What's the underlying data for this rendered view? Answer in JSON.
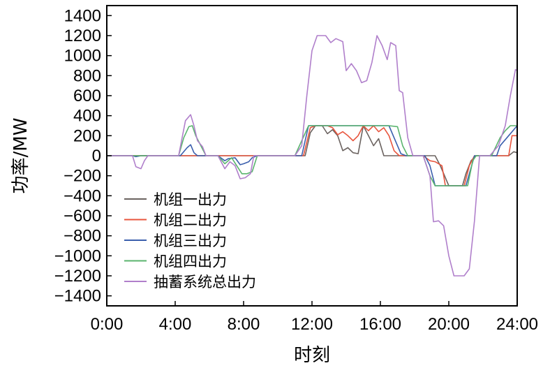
{
  "chart_data": {
    "type": "line",
    "title": "",
    "xlabel": "时刻",
    "ylabel": "功率/MW",
    "xlim": [
      0,
      24
    ],
    "ylim": [
      -1500,
      1500
    ],
    "x_ticks": [
      "0:00",
      "4:00",
      "8:00",
      "12:00",
      "16:00",
      "20:00",
      "24:00"
    ],
    "x_tick_values": [
      0,
      4,
      8,
      12,
      16,
      20,
      24
    ],
    "y_ticks": [
      1400,
      1200,
      1000,
      800,
      600,
      400,
      200,
      0,
      -200,
      -400,
      -600,
      -800,
      -1000,
      -1200,
      -1400
    ],
    "grid": false,
    "legend_position": "bottom-left",
    "series": [
      {
        "name": "机组一出力",
        "color": "#6b6360",
        "points": [
          [
            0,
            0
          ],
          [
            11,
            0
          ],
          [
            11.6,
            0
          ],
          [
            11.9,
            230
          ],
          [
            12.2,
            300
          ],
          [
            12.6,
            300
          ],
          [
            12.9,
            220
          ],
          [
            13.2,
            260
          ],
          [
            13.5,
            200
          ],
          [
            13.8,
            50
          ],
          [
            14.1,
            80
          ],
          [
            14.4,
            30
          ],
          [
            14.7,
            20
          ],
          [
            15,
            300
          ],
          [
            15.3,
            200
          ],
          [
            15.6,
            100
          ],
          [
            15.9,
            170
          ],
          [
            16.2,
            0
          ],
          [
            16.5,
            0
          ],
          [
            17,
            0
          ],
          [
            17.5,
            0
          ],
          [
            18,
            0
          ],
          [
            18.5,
            0
          ],
          [
            19.2,
            0
          ],
          [
            19.5,
            -100
          ],
          [
            20,
            -300
          ],
          [
            20.3,
            -300
          ],
          [
            20.8,
            -300
          ],
          [
            21,
            -180
          ],
          [
            21.3,
            -50
          ],
          [
            21.6,
            0
          ],
          [
            22,
            0
          ],
          [
            23.5,
            0
          ],
          [
            23.8,
            40
          ],
          [
            24,
            30
          ]
        ]
      },
      {
        "name": "机组二出力",
        "color": "#e8553e",
        "points": [
          [
            0,
            0
          ],
          [
            11,
            0
          ],
          [
            11.5,
            0
          ],
          [
            11.9,
            280
          ],
          [
            12.2,
            300
          ],
          [
            12.6,
            300
          ],
          [
            12.9,
            300
          ],
          [
            13.2,
            280
          ],
          [
            13.5,
            210
          ],
          [
            13.8,
            240
          ],
          [
            14.1,
            200
          ],
          [
            14.4,
            150
          ],
          [
            14.7,
            200
          ],
          [
            15,
            300
          ],
          [
            15.3,
            250
          ],
          [
            15.6,
            300
          ],
          [
            15.9,
            240
          ],
          [
            16.2,
            280
          ],
          [
            16.5,
            200
          ],
          [
            16.8,
            50
          ],
          [
            17.1,
            0
          ],
          [
            18,
            0
          ],
          [
            18.5,
            0
          ],
          [
            18.9,
            -50
          ],
          [
            19.2,
            -60
          ],
          [
            19.6,
            -100
          ],
          [
            19.8,
            -300
          ],
          [
            20,
            -300
          ],
          [
            20.4,
            -300
          ],
          [
            20.9,
            -300
          ],
          [
            21.2,
            -100
          ],
          [
            21.5,
            0
          ],
          [
            22,
            0
          ],
          [
            23,
            0
          ],
          [
            23.5,
            0
          ],
          [
            23.7,
            200
          ],
          [
            24,
            200
          ]
        ]
      },
      {
        "name": "机组三出力",
        "color": "#3b5fad",
        "points": [
          [
            0,
            0
          ],
          [
            1.5,
            0
          ],
          [
            1.7,
            -10
          ],
          [
            2,
            0
          ],
          [
            4.3,
            0
          ],
          [
            4.7,
            80
          ],
          [
            4.9,
            110
          ],
          [
            5.1,
            30
          ],
          [
            5.3,
            0
          ],
          [
            6,
            0
          ],
          [
            6.5,
            0
          ],
          [
            6.9,
            -50
          ],
          [
            7.1,
            -30
          ],
          [
            7.5,
            -20
          ],
          [
            7.8,
            -90
          ],
          [
            8,
            -80
          ],
          [
            8.3,
            -60
          ],
          [
            8.5,
            -20
          ],
          [
            8.8,
            0
          ],
          [
            11,
            0
          ],
          [
            11.4,
            0
          ],
          [
            11.8,
            300
          ],
          [
            12.2,
            300
          ],
          [
            13,
            300
          ],
          [
            14,
            300
          ],
          [
            15,
            300
          ],
          [
            16,
            300
          ],
          [
            16.5,
            300
          ],
          [
            16.8,
            180
          ],
          [
            17.2,
            20
          ],
          [
            17.5,
            0
          ],
          [
            18,
            0
          ],
          [
            18.6,
            0
          ],
          [
            18.9,
            -100
          ],
          [
            19.2,
            -300
          ],
          [
            19.6,
            -300
          ],
          [
            20,
            -300
          ],
          [
            20.5,
            -300
          ],
          [
            21,
            -300
          ],
          [
            21.3,
            -120
          ],
          [
            21.5,
            0
          ],
          [
            22,
            0
          ],
          [
            22.8,
            0
          ],
          [
            23,
            100
          ],
          [
            23.5,
            200
          ],
          [
            24,
            300
          ]
        ]
      },
      {
        "name": "机组四出力",
        "color": "#5ab46e",
        "points": [
          [
            0,
            0
          ],
          [
            1.5,
            0
          ],
          [
            2,
            0
          ],
          [
            4.2,
            0
          ],
          [
            4.5,
            180
          ],
          [
            4.8,
            290
          ],
          [
            5,
            300
          ],
          [
            5.2,
            200
          ],
          [
            5.5,
            100
          ],
          [
            5.8,
            0
          ],
          [
            6,
            0
          ],
          [
            6.5,
            0
          ],
          [
            6.9,
            -80
          ],
          [
            7.3,
            -20
          ],
          [
            7.6,
            -100
          ],
          [
            7.9,
            -180
          ],
          [
            8.2,
            -180
          ],
          [
            8.5,
            -160
          ],
          [
            8.8,
            0
          ],
          [
            11,
            0
          ],
          [
            11.4,
            150
          ],
          [
            11.8,
            300
          ],
          [
            12.5,
            300
          ],
          [
            13,
            300
          ],
          [
            14,
            300
          ],
          [
            15,
            300
          ],
          [
            16,
            300
          ],
          [
            16.5,
            300
          ],
          [
            17,
            290
          ],
          [
            17.3,
            100
          ],
          [
            17.6,
            0
          ],
          [
            18.5,
            0
          ],
          [
            18.9,
            -200
          ],
          [
            19.2,
            -300
          ],
          [
            19.6,
            -300
          ],
          [
            20,
            -300
          ],
          [
            20.5,
            -300
          ],
          [
            21.1,
            -300
          ],
          [
            21.4,
            -50
          ],
          [
            21.6,
            0
          ],
          [
            22.5,
            0
          ],
          [
            23,
            180
          ],
          [
            23.3,
            250
          ],
          [
            23.6,
            300
          ],
          [
            24,
            300
          ]
        ]
      },
      {
        "name": "抽蓄系统总出力",
        "color": "#b07fcb",
        "points": [
          [
            0,
            0
          ],
          [
            1.5,
            0
          ],
          [
            1.7,
            -110
          ],
          [
            2,
            -130
          ],
          [
            2.2,
            -50
          ],
          [
            2.4,
            0
          ],
          [
            4.2,
            0
          ],
          [
            4.6,
            350
          ],
          [
            4.9,
            410
          ],
          [
            5.1,
            300
          ],
          [
            5.3,
            150
          ],
          [
            5.6,
            90
          ],
          [
            5.8,
            0
          ],
          [
            6.5,
            0
          ],
          [
            6.9,
            -130
          ],
          [
            7.2,
            -60
          ],
          [
            7.5,
            -100
          ],
          [
            7.8,
            -230
          ],
          [
            8.1,
            -220
          ],
          [
            8.4,
            -180
          ],
          [
            8.6,
            0
          ],
          [
            11,
            0
          ],
          [
            11.4,
            100
          ],
          [
            11.7,
            600
          ],
          [
            12,
            1050
          ],
          [
            12.3,
            1200
          ],
          [
            12.8,
            1200
          ],
          [
            13.1,
            1130
          ],
          [
            13.4,
            1170
          ],
          [
            13.8,
            1140
          ],
          [
            14,
            850
          ],
          [
            14.3,
            920
          ],
          [
            14.6,
            850
          ],
          [
            14.9,
            730
          ],
          [
            15.2,
            750
          ],
          [
            15.5,
            930
          ],
          [
            15.8,
            1200
          ],
          [
            16.1,
            1100
          ],
          [
            16.4,
            960
          ],
          [
            16.6,
            1130
          ],
          [
            16.9,
            1100
          ],
          [
            17.1,
            650
          ],
          [
            17.3,
            630
          ],
          [
            17.6,
            180
          ],
          [
            17.9,
            0
          ],
          [
            18.5,
            0
          ],
          [
            18.9,
            -200
          ],
          [
            19.1,
            -660
          ],
          [
            19.4,
            -650
          ],
          [
            19.7,
            -700
          ],
          [
            20,
            -1000
          ],
          [
            20.3,
            -1200
          ],
          [
            20.9,
            -1200
          ],
          [
            21.2,
            -1130
          ],
          [
            21.5,
            -650
          ],
          [
            21.8,
            0
          ],
          [
            22.4,
            0
          ],
          [
            22.9,
            100
          ],
          [
            23.3,
            300
          ],
          [
            23.6,
            600
          ],
          [
            23.9,
            860
          ],
          [
            24,
            850
          ]
        ]
      }
    ]
  }
}
